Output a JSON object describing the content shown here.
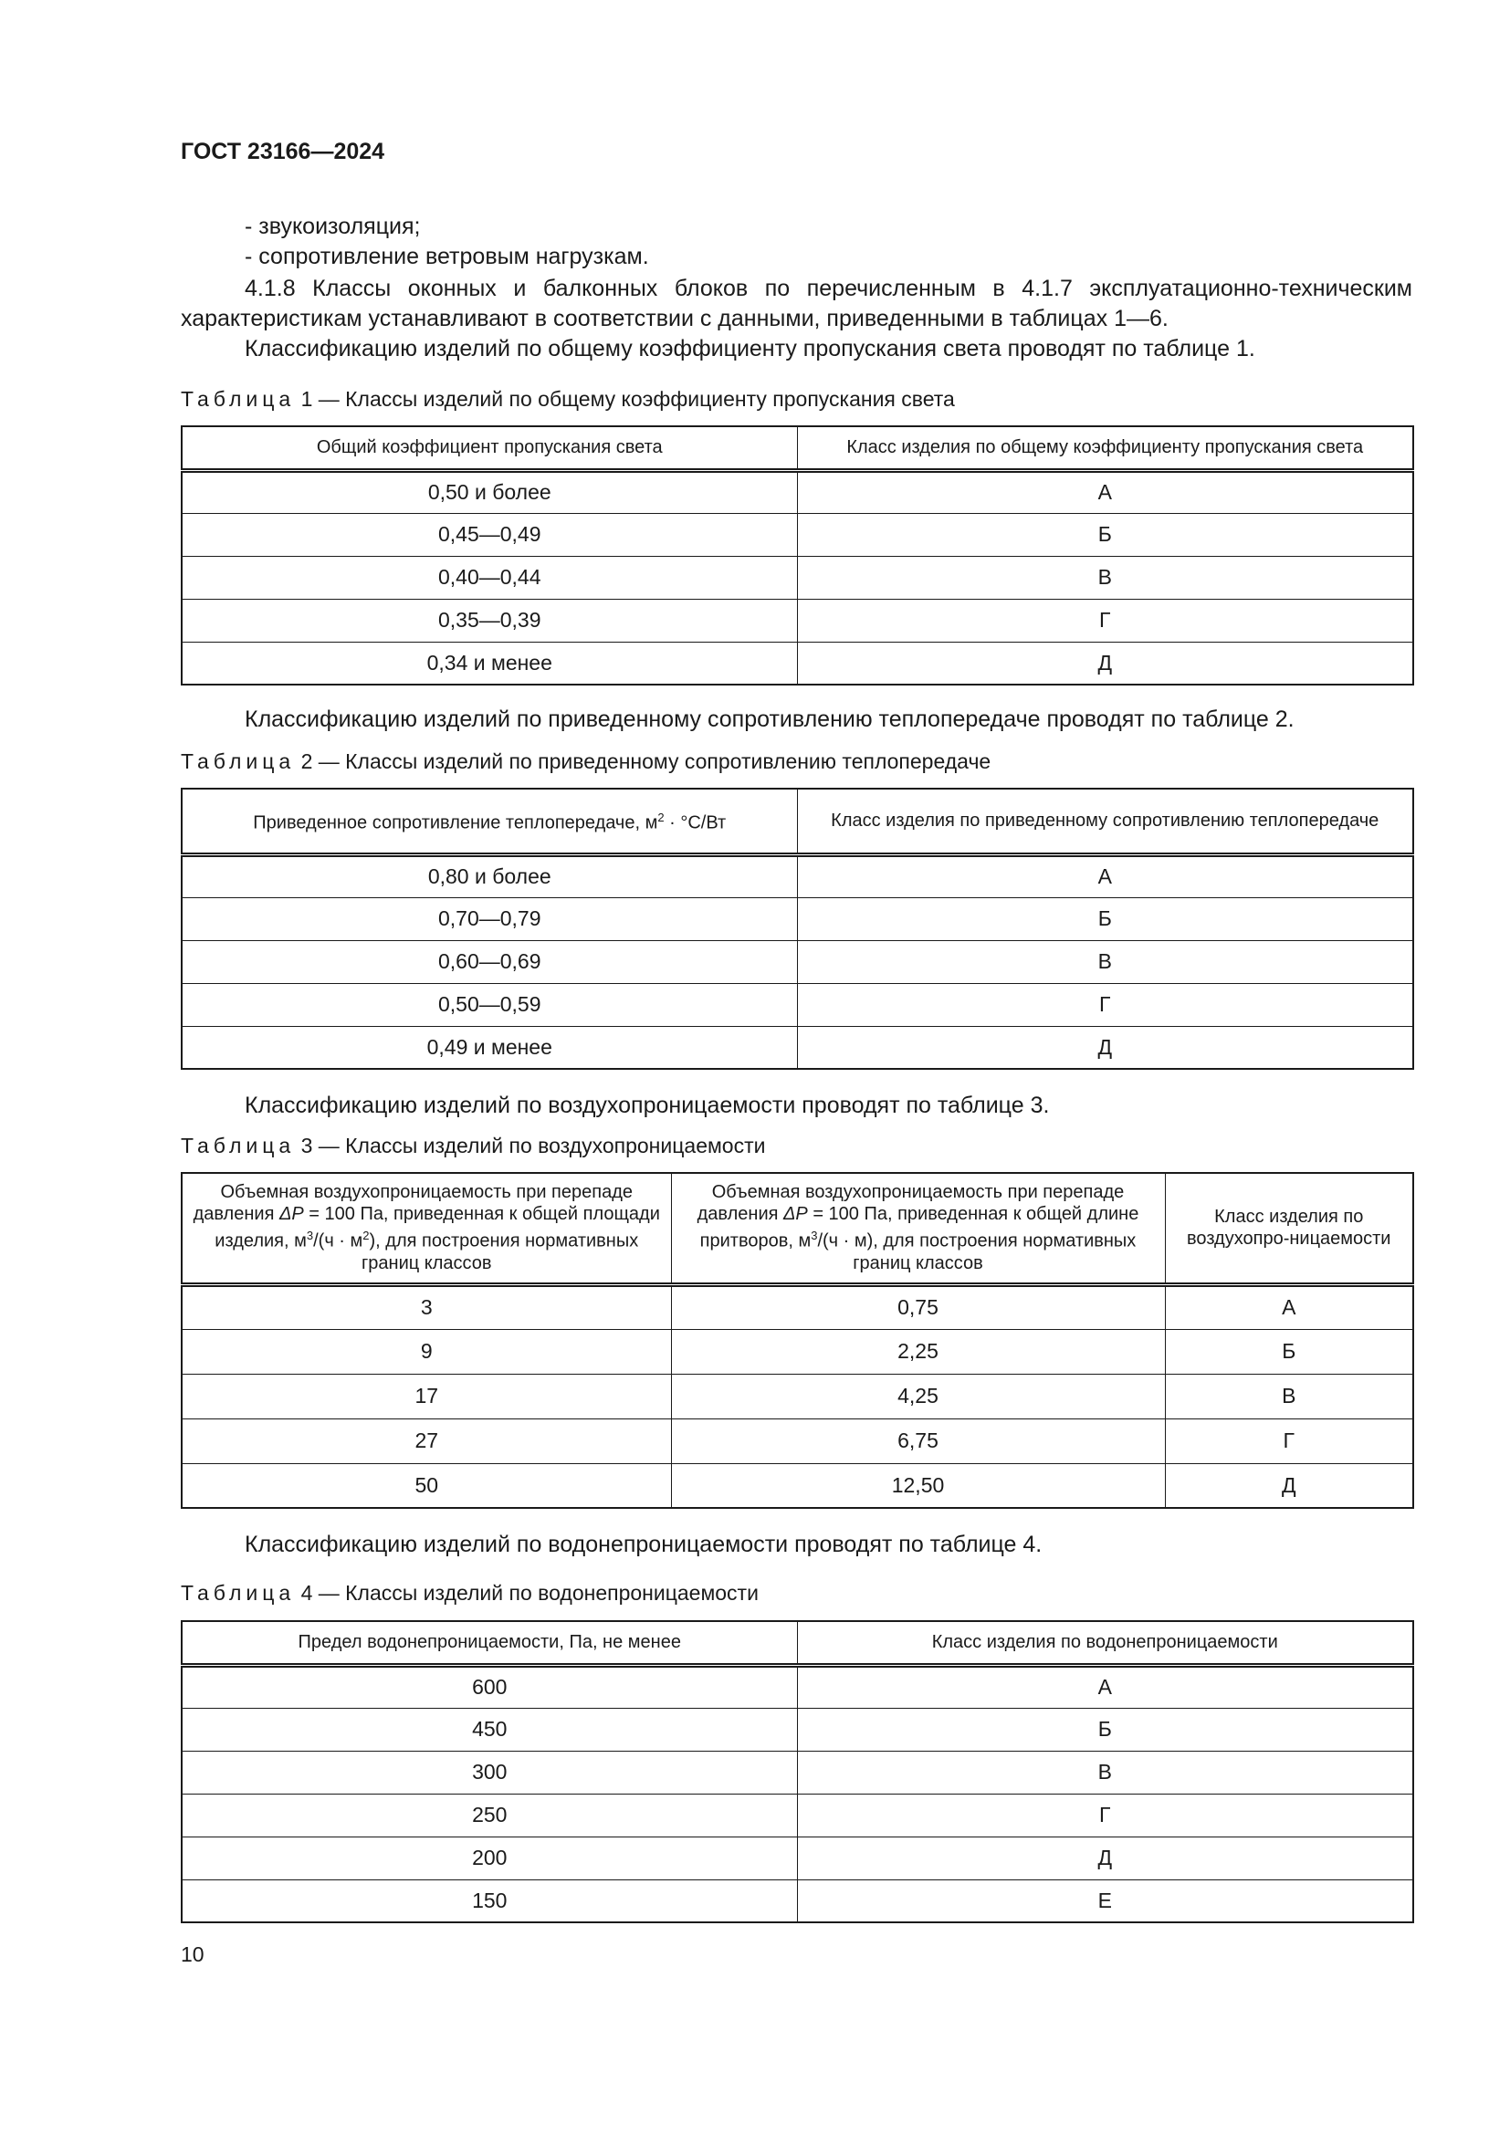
{
  "header": {
    "title": "ГОСТ 23166—2024"
  },
  "intro": {
    "bullets": [
      "- звукоизоляция;",
      "- сопротивление ветровым нагрузкам."
    ],
    "p418": "4.1.8 Классы оконных и балконных блоков по перечисленным в 4.1.7 эксплуатационно-техническим характеристикам устанавливают в соответствии с данными, приведенными в таблицах 1—6.",
    "p_t1": "Классификацию изделий по общему коэффициенту пропускания света проводят по таблице 1."
  },
  "tables": [
    {
      "caption_word": "Таблица",
      "caption_rest": " 1 — Классы изделий по общему коэффициенту пропускания света",
      "headers": [
        "Общий коэффициент пропускания света",
        "Класс изделия по общему коэффициенту пропускания света"
      ],
      "rows": [
        [
          "0,50 и более",
          "А"
        ],
        [
          "0,45—0,49",
          "Б"
        ],
        [
          "0,40—0,44",
          "В"
        ],
        [
          "0,35—0,39",
          "Г"
        ],
        [
          "0,34 и менее",
          "Д"
        ]
      ]
    },
    {
      "intro": "Классификацию изделий по приведенному сопротивлению теплопередаче проводят по таблице 2.",
      "caption_word": "Таблица",
      "caption_rest": " 2 — Классы изделий по приведенному сопротивлению теплопередаче",
      "headers": [
        "Приведенное сопротивление теплопередаче, м<sup>2</sup> · °С/Вт",
        "Класс изделия по приведенному сопротивлению теплопередаче"
      ],
      "rows": [
        [
          "0,80 и более",
          "А"
        ],
        [
          "0,70—0,79",
          "Б"
        ],
        [
          "0,60—0,69",
          "В"
        ],
        [
          "0,50—0,59",
          "Г"
        ],
        [
          "0,49 и менее",
          "Д"
        ]
      ]
    },
    {
      "intro": "Классификацию изделий по воздухопроницаемости проводят по таблице 3.",
      "caption_word": "Таблица",
      "caption_rest": " 3 — Классы изделий по воздухопроницаемости",
      "headers": [
        "Объемная воздухопроницаемость при перепаде давления <i>ΔP</i> = 100 Па, приведенная к общей площади изделия, м<sup>3</sup>/(ч · м<sup>2</sup>), для построения нормативных границ классов",
        "Объемная воздухопроницаемость при перепаде давления <i>ΔP</i> = 100 Па, приведенная к общей длине притворов, м<sup>3</sup>/(ч · м), для построения нормативных границ классов",
        "Класс изделия по воздухопро-ницаемости"
      ],
      "rows": [
        [
          "3",
          "0,75",
          "А"
        ],
        [
          "9",
          "2,25",
          "Б"
        ],
        [
          "17",
          "4,25",
          "В"
        ],
        [
          "27",
          "6,75",
          "Г"
        ],
        [
          "50",
          "12,50",
          "Д"
        ]
      ]
    },
    {
      "intro": "Классификацию изделий по водонепроницаемости проводят по таблице 4.",
      "caption_word": "Таблица",
      "caption_rest": " 4 — Классы изделий по водонепроницаемости",
      "headers": [
        "Предел водонепроницаемости, Па, не менее",
        "Класс изделия по водонепроницаемости"
      ],
      "rows": [
        [
          "600",
          "А"
        ],
        [
          "450",
          "Б"
        ],
        [
          "300",
          "В"
        ],
        [
          "250",
          "Г"
        ],
        [
          "200",
          "Д"
        ],
        [
          "150",
          "Е"
        ]
      ]
    }
  ],
  "footer": {
    "page_number": "10"
  }
}
